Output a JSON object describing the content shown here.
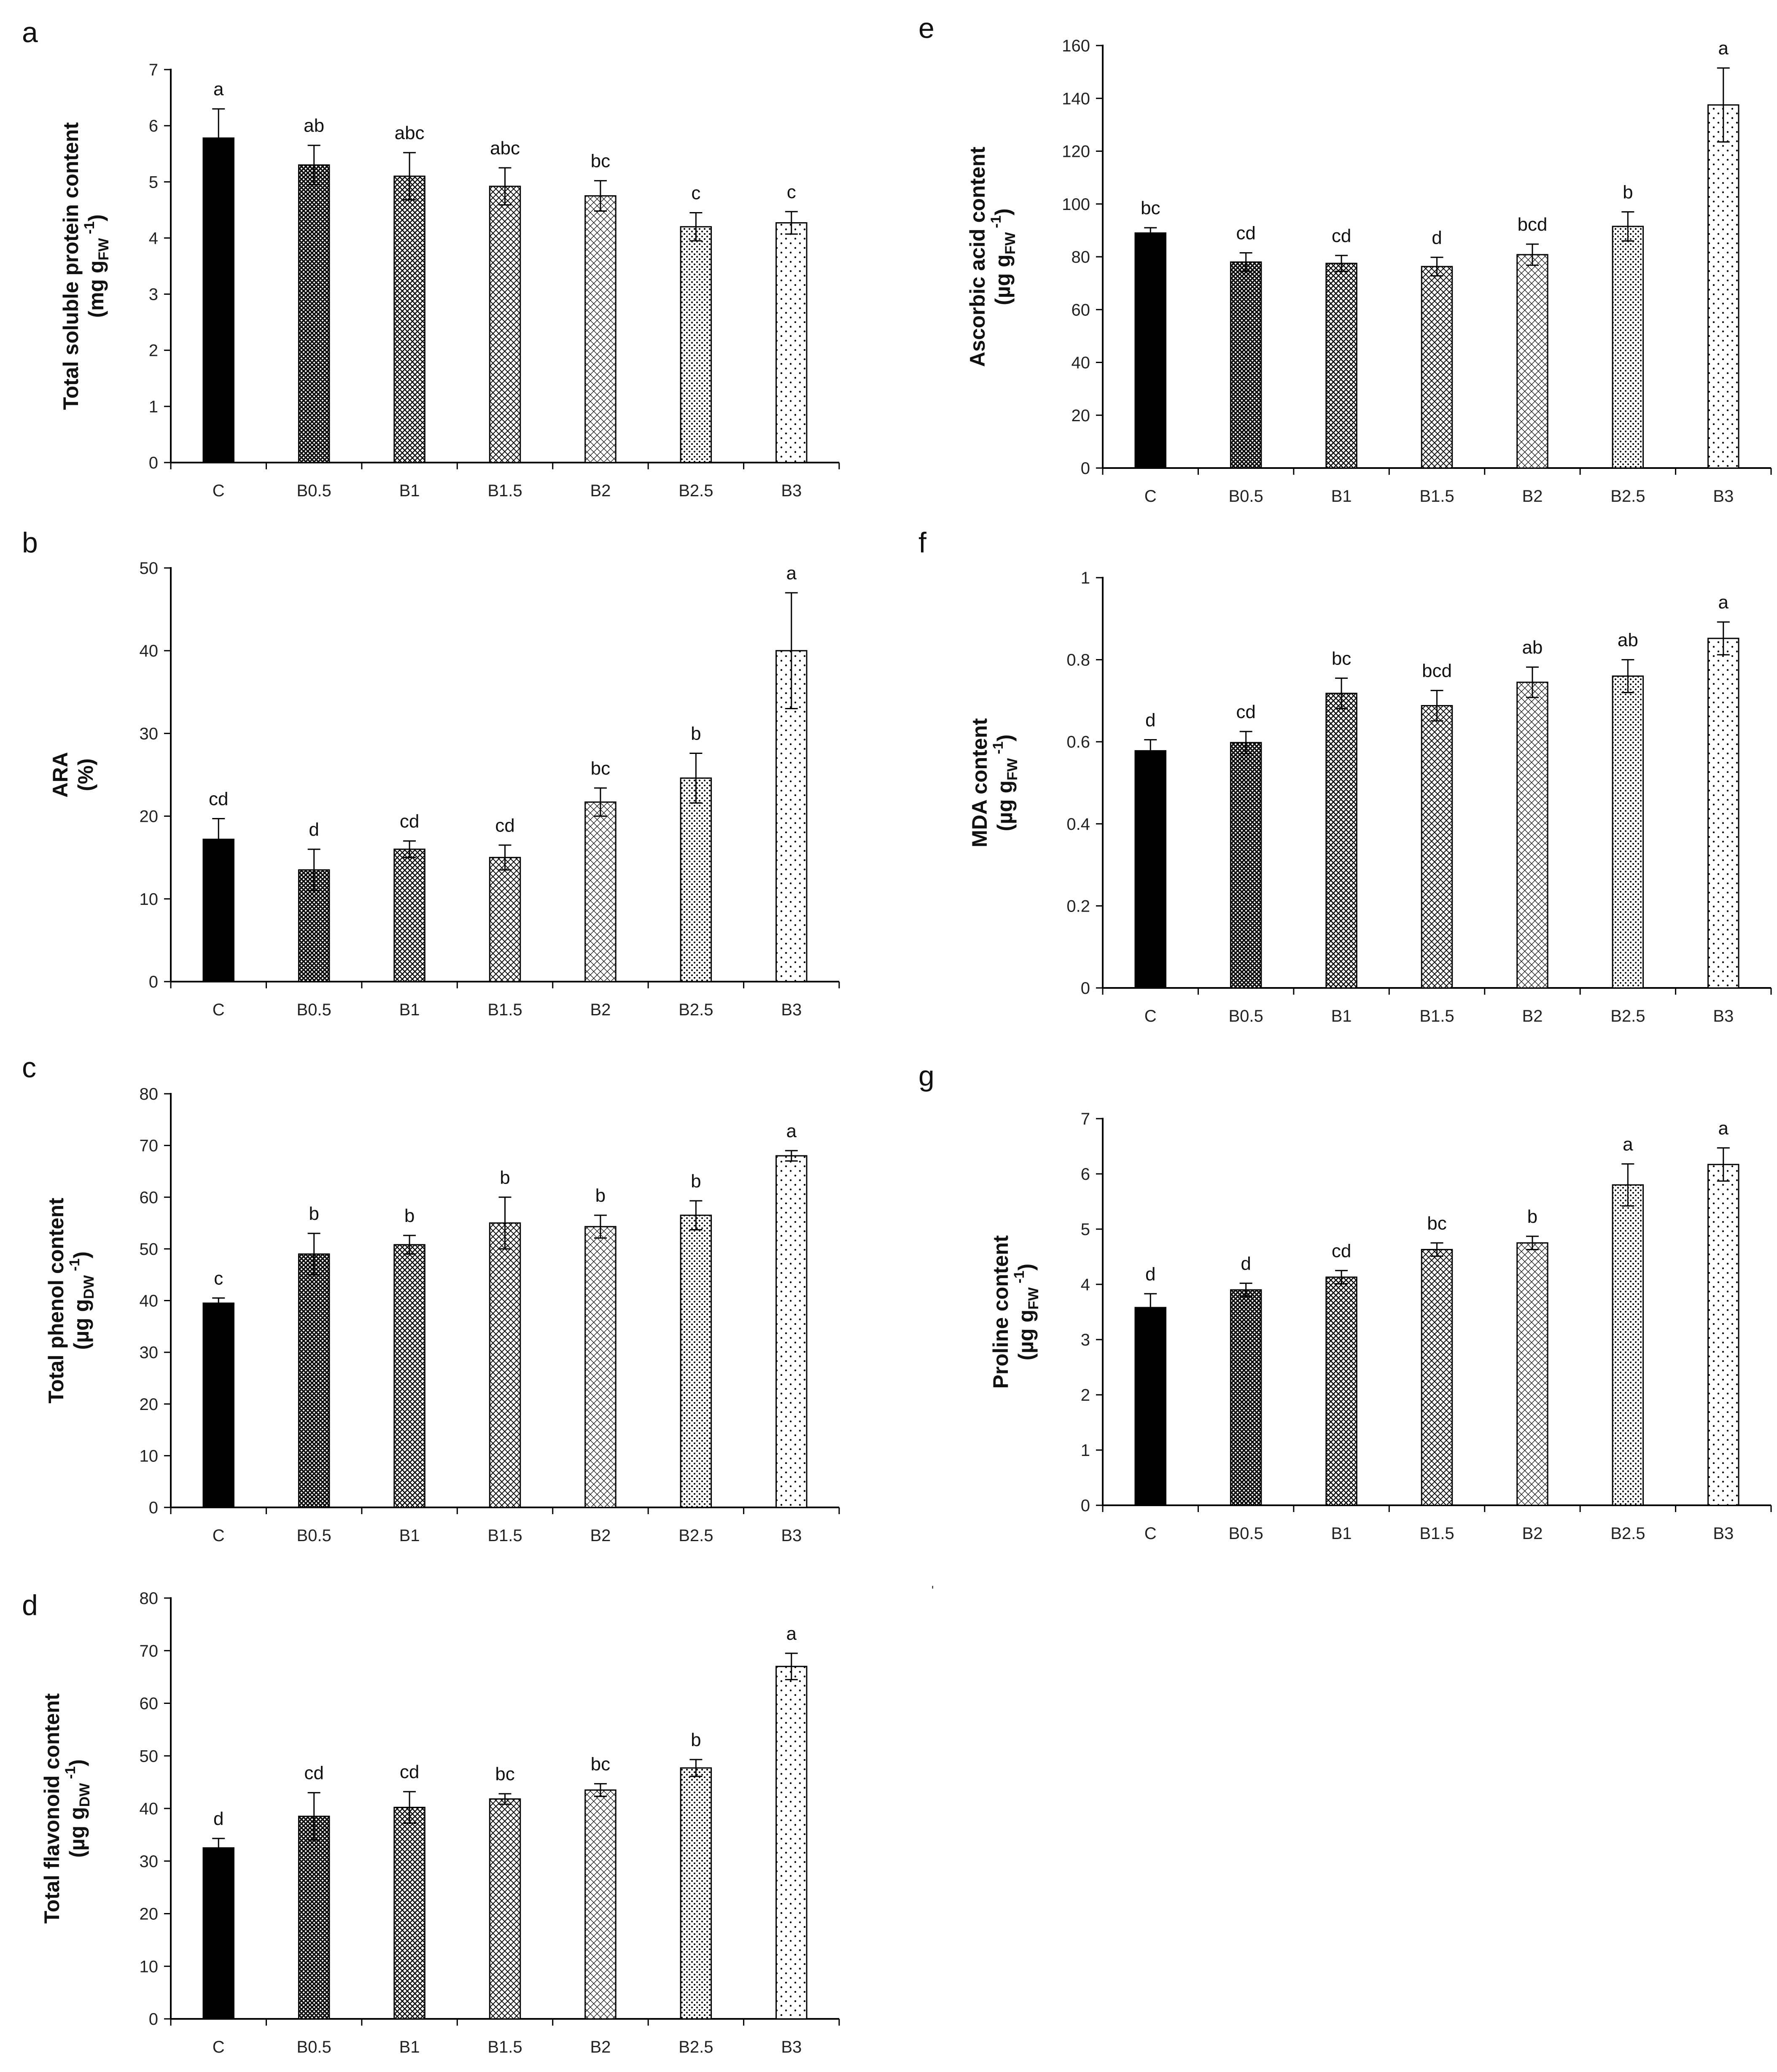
{
  "stray_mark": "ˈ",
  "chart_data": [
    {
      "type": "bar",
      "panel_label": "a",
      "ylabel": [
        "Total soluble protein content",
        "(mg g",
        "FW",
        " -1",
        ")"
      ],
      "categories": [
        "C",
        "B0.5",
        "B1",
        "B1.5",
        "B2",
        "B2.5",
        "B3"
      ],
      "values": [
        5.78,
        5.3,
        5.1,
        4.92,
        4.75,
        4.2,
        4.27
      ],
      "errors": [
        0.52,
        0.35,
        0.42,
        0.33,
        0.27,
        0.25,
        0.2
      ],
      "letters": [
        "a",
        "ab",
        "abc",
        "abc",
        "bc",
        "c",
        "c"
      ],
      "ylim": [
        0,
        7
      ],
      "yticks": [
        "0",
        "1",
        "2",
        "3",
        "4",
        "5",
        "6",
        "7"
      ]
    },
    {
      "type": "bar",
      "panel_label": "b",
      "ylabel": [
        "ARA",
        "(%)"
      ],
      "categories": [
        "C",
        "B0.5",
        "B1",
        "B1.5",
        "B2",
        "B2.5",
        "B3"
      ],
      "values": [
        17.2,
        13.5,
        16.0,
        15.0,
        21.7,
        24.6,
        40.0
      ],
      "errors": [
        2.5,
        2.5,
        1.0,
        1.5,
        1.7,
        3.0,
        7.0
      ],
      "letters": [
        "cd",
        "d",
        "cd",
        "cd",
        "bc",
        "b",
        "a"
      ],
      "ylim": [
        0,
        50
      ],
      "yticks": [
        "0",
        "10",
        "20",
        "30",
        "40",
        "50"
      ]
    },
    {
      "type": "bar",
      "panel_label": "c",
      "ylabel": [
        "Total phenol content",
        "(µg g",
        "DW",
        " -1",
        ")"
      ],
      "categories": [
        "C",
        "B0.5",
        "B1",
        "B1.5",
        "B2",
        "B2.5",
        "B3"
      ],
      "values": [
        39.5,
        49.0,
        50.8,
        55.0,
        54.3,
        56.5,
        68.0
      ],
      "errors": [
        1.0,
        4.0,
        1.8,
        5.0,
        2.2,
        2.8,
        1.0
      ],
      "letters": [
        "c",
        "b",
        "b",
        "b",
        "b",
        "b",
        "a"
      ],
      "ylim": [
        0,
        80
      ],
      "yticks": [
        "0",
        "10",
        "20",
        "30",
        "40",
        "50",
        "60",
        "70",
        "80"
      ]
    },
    {
      "type": "bar",
      "panel_label": "d",
      "ylabel": [
        "Total flavonoid content",
        "(µg g",
        "DW",
        " -1",
        ")"
      ],
      "categories": [
        "C",
        "B0.5",
        "B1",
        "B1.5",
        "B2",
        "B2.5",
        "B3"
      ],
      "values": [
        32.5,
        38.5,
        40.2,
        41.8,
        43.5,
        47.7,
        67.0
      ],
      "errors": [
        1.8,
        4.5,
        3.0,
        1.0,
        1.2,
        1.6,
        2.5
      ],
      "letters": [
        "d",
        "cd",
        "cd",
        "bc",
        "bc",
        "b",
        "a"
      ],
      "ylim": [
        0,
        80
      ],
      "yticks": [
        "0",
        "10",
        "20",
        "30",
        "40",
        "50",
        "60",
        "70",
        "80"
      ]
    },
    {
      "type": "bar",
      "panel_label": "e",
      "ylabel": [
        "Ascorbic acid content",
        "(µg g",
        "FW",
        " -1",
        ")"
      ],
      "categories": [
        "C",
        "B0.5",
        "B1",
        "B1.5",
        "B2",
        "B2.5",
        "B3"
      ],
      "values": [
        89.0,
        78.0,
        77.5,
        76.3,
        80.8,
        91.5,
        137.5
      ],
      "errors": [
        2.0,
        3.5,
        3.0,
        3.5,
        4.0,
        5.5,
        14.0
      ],
      "letters": [
        "bc",
        "cd",
        "cd",
        "d",
        "bcd",
        "b",
        "a"
      ],
      "ylim": [
        0,
        160
      ],
      "yticks": [
        "0",
        "20",
        "40",
        "60",
        "80",
        "100",
        "120",
        "140",
        "160"
      ]
    },
    {
      "type": "bar",
      "panel_label": "f",
      "ylabel": [
        "MDA content",
        "(µg g",
        "FW",
        " -1",
        ")"
      ],
      "categories": [
        "C",
        "B0.5",
        "B1",
        "B1.5",
        "B2",
        "B2.5",
        "B3"
      ],
      "values": [
        0.578,
        0.598,
        0.718,
        0.688,
        0.745,
        0.76,
        0.852
      ],
      "errors": [
        0.027,
        0.027,
        0.037,
        0.037,
        0.037,
        0.04,
        0.04
      ],
      "letters": [
        "d",
        "cd",
        "bc",
        "bcd",
        "ab",
        "ab",
        "a"
      ],
      "ylim": [
        0,
        1
      ],
      "yticks": [
        "0",
        "0.2",
        "0.4",
        "0.6",
        "0.8",
        "1"
      ]
    },
    {
      "type": "bar",
      "panel_label": "g",
      "ylabel": [
        "Proline content",
        "(µg g",
        "FW",
        " -1",
        ")"
      ],
      "categories": [
        "C",
        "B0.5",
        "B1",
        "B1.5",
        "B2",
        "B2.5",
        "B3"
      ],
      "values": [
        3.58,
        3.9,
        4.13,
        4.63,
        4.75,
        5.8,
        6.17
      ],
      "errors": [
        0.25,
        0.12,
        0.12,
        0.12,
        0.12,
        0.38,
        0.3
      ],
      "letters": [
        "d",
        "d",
        "cd",
        "bc",
        "b",
        "a",
        "a"
      ],
      "ylim": [
        0,
        7
      ],
      "yticks": [
        "0",
        "1",
        "2",
        "3",
        "4",
        "5",
        "6",
        "7"
      ]
    }
  ]
}
